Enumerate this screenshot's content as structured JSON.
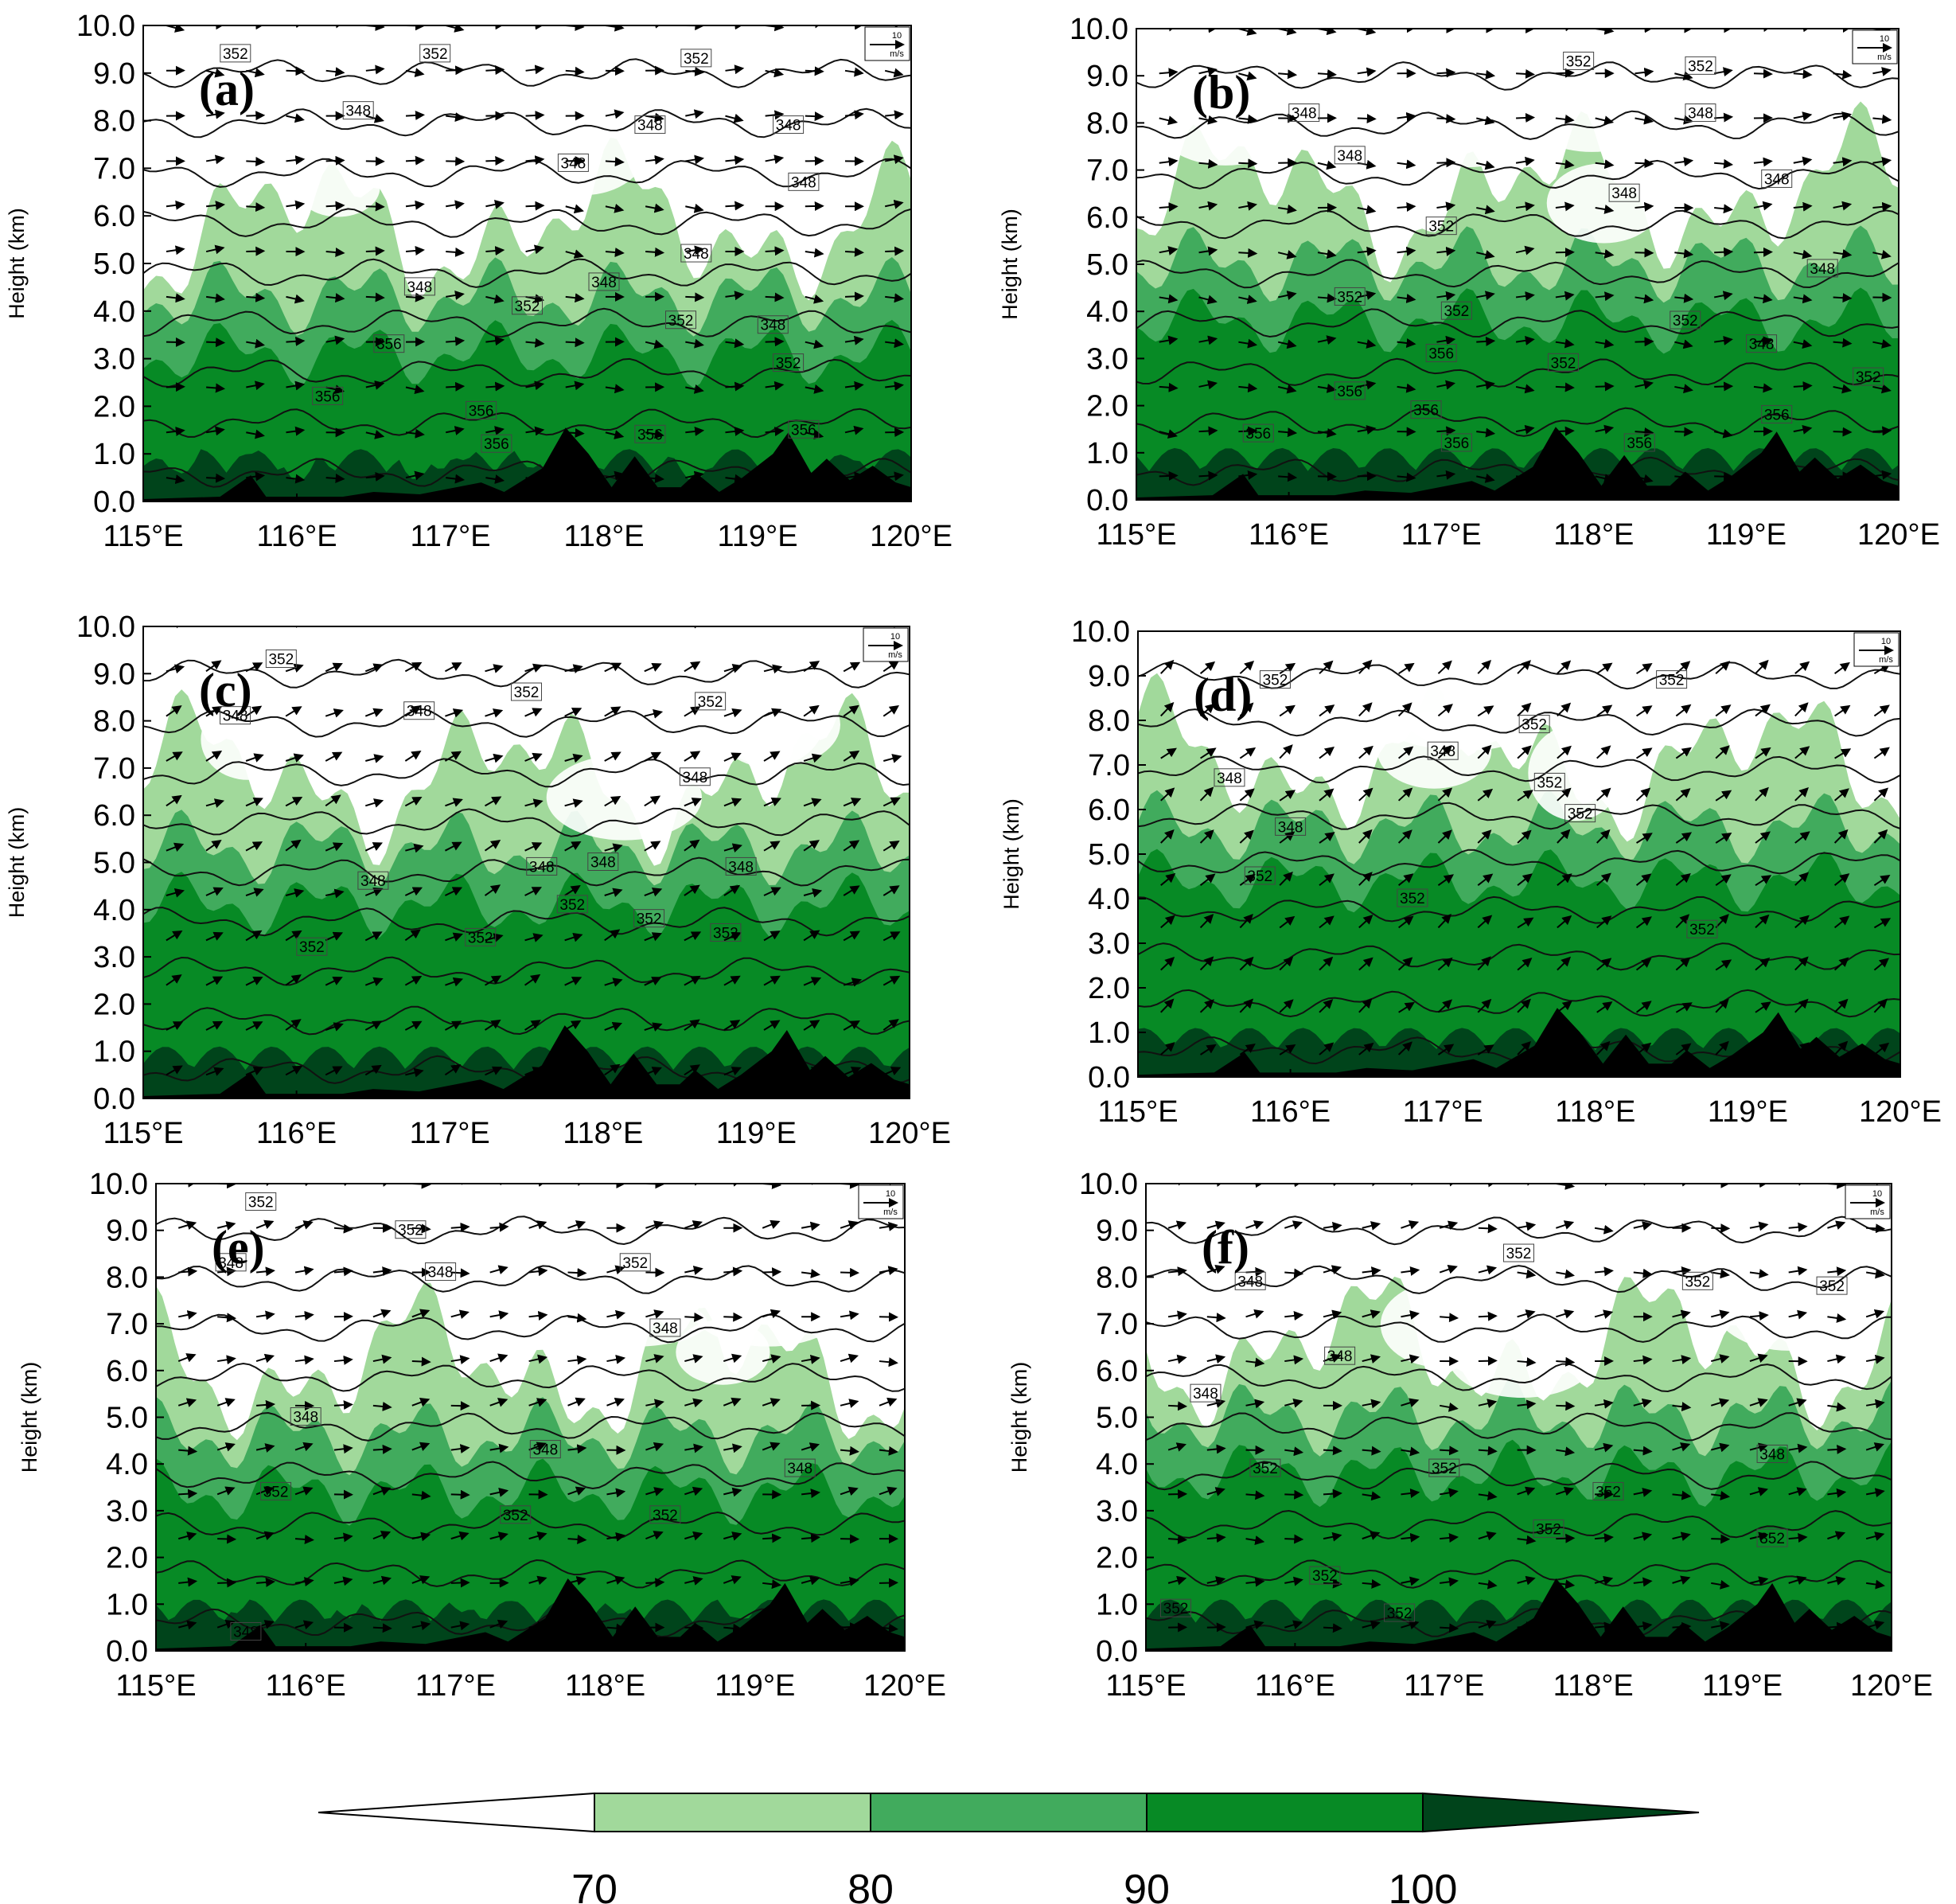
{
  "chart_data": {
    "type": "heatmap",
    "description_kind": "longitude-height cross sections",
    "x_ticks": [
      "115°E",
      "116°E",
      "117°E",
      "118°E",
      "119°E",
      "120°E"
    ],
    "x_range": [
      115,
      120
    ],
    "y_ticks": [
      "0.0",
      "1.0",
      "2.0",
      "3.0",
      "4.0",
      "5.0",
      "6.0",
      "7.0",
      "8.0",
      "9.0",
      "10.0"
    ],
    "y_range": [
      0,
      10
    ],
    "ylabel": "Height (km)",
    "reference_vector": {
      "value": "10",
      "unit": "m/s"
    },
    "colorbar": {
      "levels": [
        "70",
        "80",
        "90",
        "100"
      ],
      "colors": [
        "#ffffff",
        "#a1d99b",
        "#41ab5d",
        "#078a25",
        "#00441b"
      ]
    },
    "panels": [
      {
        "tag": "(a)",
        "moist_top_km": 4.3,
        "vec_u": 1.0,
        "vec_v": 0.0,
        "contour_labels": [
          {
            "text": "352",
            "lon": 115.6,
            "h": 9.4
          },
          {
            "text": "352",
            "lon": 116.9,
            "h": 9.4
          },
          {
            "text": "352",
            "lon": 118.6,
            "h": 9.3
          },
          {
            "text": "348",
            "lon": 116.4,
            "h": 8.2
          },
          {
            "text": "348",
            "lon": 118.3,
            "h": 7.9
          },
          {
            "text": "348",
            "lon": 119.2,
            "h": 7.9
          },
          {
            "text": "348",
            "lon": 117.8,
            "h": 7.1
          },
          {
            "text": "348",
            "lon": 119.3,
            "h": 6.7
          },
          {
            "text": "348",
            "lon": 118.6,
            "h": 5.2
          },
          {
            "text": "348",
            "lon": 116.8,
            "h": 4.5
          },
          {
            "text": "348",
            "lon": 118.0,
            "h": 4.6
          },
          {
            "text": "352",
            "lon": 117.5,
            "h": 4.1
          },
          {
            "text": "352",
            "lon": 118.5,
            "h": 3.8
          },
          {
            "text": "348",
            "lon": 119.1,
            "h": 3.7
          },
          {
            "text": "356",
            "lon": 116.6,
            "h": 3.3
          },
          {
            "text": "352",
            "lon": 119.2,
            "h": 2.9
          },
          {
            "text": "356",
            "lon": 116.2,
            "h": 2.2
          },
          {
            "text": "356",
            "lon": 117.2,
            "h": 1.9
          },
          {
            "text": "356",
            "lon": 117.3,
            "h": 1.2
          },
          {
            "text": "356",
            "lon": 118.3,
            "h": 1.4
          },
          {
            "text": "356",
            "lon": 119.3,
            "h": 1.5
          }
        ]
      },
      {
        "tag": "(b)",
        "moist_top_km": 5.0,
        "vec_u": 1.0,
        "vec_v": 0.0,
        "contour_labels": [
          {
            "text": "352",
            "lon": 117.9,
            "h": 9.3
          },
          {
            "text": "352",
            "lon": 118.7,
            "h": 9.2
          },
          {
            "text": "348",
            "lon": 116.1,
            "h": 8.2
          },
          {
            "text": "348",
            "lon": 118.7,
            "h": 8.2
          },
          {
            "text": "348",
            "lon": 116.4,
            "h": 7.3
          },
          {
            "text": "348",
            "lon": 118.2,
            "h": 6.5
          },
          {
            "text": "348",
            "lon": 119.2,
            "h": 6.8
          },
          {
            "text": "352",
            "lon": 117.0,
            "h": 5.8
          },
          {
            "text": "348",
            "lon": 119.5,
            "h": 4.9
          },
          {
            "text": "352",
            "lon": 116.4,
            "h": 4.3
          },
          {
            "text": "352",
            "lon": 117.1,
            "h": 4.0
          },
          {
            "text": "352",
            "lon": 118.6,
            "h": 3.8
          },
          {
            "text": "348",
            "lon": 119.1,
            "h": 3.3
          },
          {
            "text": "356",
            "lon": 117.0,
            "h": 3.1
          },
          {
            "text": "352",
            "lon": 117.8,
            "h": 2.9
          },
          {
            "text": "352",
            "lon": 119.8,
            "h": 2.6
          },
          {
            "text": "356",
            "lon": 116.4,
            "h": 2.3
          },
          {
            "text": "356",
            "lon": 116.9,
            "h": 1.9
          },
          {
            "text": "356",
            "lon": 115.8,
            "h": 1.4
          },
          {
            "text": "356",
            "lon": 117.1,
            "h": 1.2
          },
          {
            "text": "356",
            "lon": 118.3,
            "h": 1.2
          },
          {
            "text": "356",
            "lon": 119.2,
            "h": 1.8
          }
        ]
      },
      {
        "tag": "(c)",
        "moist_top_km": 5.3,
        "vec_u": 0.8,
        "vec_v": 0.4,
        "contour_labels": [
          {
            "text": "352",
            "lon": 115.9,
            "h": 9.3
          },
          {
            "text": "348",
            "lon": 115.6,
            "h": 8.1
          },
          {
            "text": "348",
            "lon": 116.8,
            "h": 8.2
          },
          {
            "text": "352",
            "lon": 117.5,
            "h": 8.6
          },
          {
            "text": "352",
            "lon": 118.7,
            "h": 8.4
          },
          {
            "text": "348",
            "lon": 118.6,
            "h": 6.8
          },
          {
            "text": "348",
            "lon": 117.6,
            "h": 4.9
          },
          {
            "text": "348",
            "lon": 118.0,
            "h": 5.0
          },
          {
            "text": "348",
            "lon": 118.9,
            "h": 4.9
          },
          {
            "text": "348",
            "lon": 116.5,
            "h": 4.6
          },
          {
            "text": "352",
            "lon": 117.8,
            "h": 4.1
          },
          {
            "text": "352",
            "lon": 118.3,
            "h": 3.8
          },
          {
            "text": "352",
            "lon": 118.8,
            "h": 3.5
          },
          {
            "text": "352",
            "lon": 116.1,
            "h": 3.2
          },
          {
            "text": "352",
            "lon": 117.2,
            "h": 3.4
          }
        ]
      },
      {
        "tag": "(d)",
        "moist_top_km": 5.6,
        "vec_u": 0.7,
        "vec_v": 0.6,
        "contour_labels": [
          {
            "text": "352",
            "lon": 115.9,
            "h": 8.9
          },
          {
            "text": "352",
            "lon": 118.5,
            "h": 8.9
          },
          {
            "text": "352",
            "lon": 117.6,
            "h": 7.9
          },
          {
            "text": "348",
            "lon": 117.0,
            "h": 7.3
          },
          {
            "text": "348",
            "lon": 115.6,
            "h": 6.7
          },
          {
            "text": "352",
            "lon": 117.7,
            "h": 6.6
          },
          {
            "text": "352",
            "lon": 117.9,
            "h": 5.9
          },
          {
            "text": "348",
            "lon": 116.0,
            "h": 5.6
          },
          {
            "text": "352",
            "lon": 115.8,
            "h": 4.5
          },
          {
            "text": "352",
            "lon": 116.8,
            "h": 4.0
          },
          {
            "text": "352",
            "lon": 118.7,
            "h": 3.3
          }
        ]
      },
      {
        "tag": "(e)",
        "moist_top_km": 4.6,
        "vec_u": 0.9,
        "vec_v": 0.15,
        "contour_labels": [
          {
            "text": "352",
            "lon": 115.7,
            "h": 9.6
          },
          {
            "text": "352",
            "lon": 116.7,
            "h": 9.0
          },
          {
            "text": "348",
            "lon": 115.5,
            "h": 8.3
          },
          {
            "text": "348",
            "lon": 116.9,
            "h": 8.1
          },
          {
            "text": "352",
            "lon": 118.2,
            "h": 8.3
          },
          {
            "text": "348",
            "lon": 118.4,
            "h": 6.9
          },
          {
            "text": "348",
            "lon": 116.0,
            "h": 5.0
          },
          {
            "text": "348",
            "lon": 117.6,
            "h": 4.3
          },
          {
            "text": "348",
            "lon": 119.3,
            "h": 3.9
          },
          {
            "text": "352",
            "lon": 115.8,
            "h": 3.4
          },
          {
            "text": "352",
            "lon": 117.4,
            "h": 2.9
          },
          {
            "text": "352",
            "lon": 118.4,
            "h": 2.9
          },
          {
            "text": "348",
            "lon": 115.6,
            "h": 0.4
          }
        ]
      },
      {
        "tag": "(f)",
        "moist_top_km": 5.0,
        "vec_u": 0.9,
        "vec_v": 0.1,
        "contour_labels": [
          {
            "text": "352",
            "lon": 117.5,
            "h": 8.5
          },
          {
            "text": "352",
            "lon": 118.7,
            "h": 7.9
          },
          {
            "text": "352",
            "lon": 119.6,
            "h": 7.8
          },
          {
            "text": "348",
            "lon": 115.7,
            "h": 7.9
          },
          {
            "text": "348",
            "lon": 116.3,
            "h": 6.3
          },
          {
            "text": "348",
            "lon": 115.4,
            "h": 5.5
          },
          {
            "text": "352",
            "lon": 115.8,
            "h": 3.9
          },
          {
            "text": "352",
            "lon": 117.0,
            "h": 3.9
          },
          {
            "text": "352",
            "lon": 118.1,
            "h": 3.4
          },
          {
            "text": "348",
            "lon": 119.2,
            "h": 4.2
          },
          {
            "text": "352",
            "lon": 117.7,
            "h": 2.6
          },
          {
            "text": "352",
            "lon": 119.2,
            "h": 2.4
          },
          {
            "text": "352",
            "lon": 116.2,
            "h": 1.6
          },
          {
            "text": "352",
            "lon": 115.2,
            "h": 0.9
          },
          {
            "text": "352",
            "lon": 116.7,
            "h": 0.8
          }
        ]
      }
    ],
    "terrain_km": [
      [
        115.0,
        0.05
      ],
      [
        115.5,
        0.1
      ],
      [
        115.7,
        0.55
      ],
      [
        115.8,
        0.1
      ],
      [
        116.3,
        0.1
      ],
      [
        116.5,
        0.2
      ],
      [
        116.8,
        0.15
      ],
      [
        117.2,
        0.4
      ],
      [
        117.35,
        0.2
      ],
      [
        117.6,
        0.7
      ],
      [
        117.75,
        1.55
      ],
      [
        117.9,
        1.0
      ],
      [
        118.05,
        0.3
      ],
      [
        118.2,
        0.95
      ],
      [
        118.35,
        0.3
      ],
      [
        118.5,
        0.3
      ],
      [
        118.6,
        0.6
      ],
      [
        118.75,
        0.2
      ],
      [
        118.9,
        0.5
      ],
      [
        119.1,
        1.0
      ],
      [
        119.2,
        1.45
      ],
      [
        119.35,
        0.6
      ],
      [
        119.45,
        0.9
      ],
      [
        119.6,
        0.45
      ],
      [
        119.75,
        0.75
      ],
      [
        119.9,
        0.4
      ],
      [
        120.0,
        0.3
      ]
    ]
  }
}
